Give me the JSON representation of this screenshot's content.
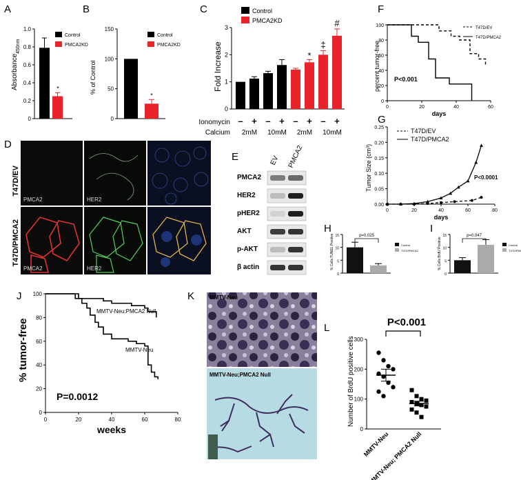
{
  "panel_labels": {
    "A": "A",
    "B": "B",
    "C": "C",
    "D": "D",
    "E": "E",
    "F": "F",
    "G": "G",
    "H": "H",
    "I": "I",
    "J": "J",
    "K": "K",
    "L": "L"
  },
  "chart_data": [
    {
      "panel": "A",
      "type": "bar",
      "ylabel": "Absorbance",
      "ylabel_sub": "450nm",
      "ylim": [
        0,
        1.0
      ],
      "yticks": [
        "0",
        "0.2",
        "0.4",
        "0.6",
        "0.8",
        "1.0"
      ],
      "legend": [
        "Control",
        "PMCA2KD"
      ],
      "series": [
        {
          "name": "Control",
          "value": 0.79,
          "error": 0.11,
          "color": "#000000"
        },
        {
          "name": "PMCA2KD",
          "value": 0.25,
          "error": 0.04,
          "color": "#e8232a"
        }
      ],
      "annotations": [
        "*"
      ]
    },
    {
      "panel": "B",
      "type": "bar",
      "ylabel": "% of Control",
      "ylim": [
        0,
        150
      ],
      "yticks": [
        "0",
        "50",
        "100",
        "150"
      ],
      "legend": [
        "Control",
        "PMCA2KD"
      ],
      "series": [
        {
          "name": "Control",
          "value": 100,
          "error": 0,
          "color": "#000000"
        },
        {
          "name": "PMCA2KD",
          "value": 25,
          "error": 7,
          "color": "#e8232a"
        }
      ],
      "annotations": [
        "*"
      ]
    },
    {
      "panel": "C",
      "type": "bar",
      "ylabel": "Fold  Increase",
      "ylim": [
        0,
        3
      ],
      "yticks": [
        "0",
        "1",
        "2",
        "3"
      ],
      "legend": [
        "Control",
        "PMCA2KD"
      ],
      "bars": [
        {
          "group": "Control",
          "value": 1.0,
          "error": 0.0
        },
        {
          "group": "Control",
          "value": 1.12,
          "error": 0.07
        },
        {
          "group": "Control",
          "value": 1.32,
          "error": 0.07
        },
        {
          "group": "Control",
          "value": 1.62,
          "error": 0.2
        },
        {
          "group": "PMCA2KD",
          "value": 1.45,
          "error": 0.05
        },
        {
          "group": "PMCA2KD",
          "value": 1.72,
          "error": 0.1
        },
        {
          "group": "PMCA2KD",
          "value": 2.0,
          "error": 0.15
        },
        {
          "group": "PMCA2KD",
          "value": 2.7,
          "error": 0.25
        }
      ],
      "colors": {
        "Control": "#000000",
        "PMCA2KD": "#e8232a"
      },
      "ionomycin_row": [
        "–",
        "+",
        "–",
        "+",
        "–",
        "+",
        "–",
        "+"
      ],
      "ionomycin_label": "Ionomycin",
      "calcium_label": "Calcium",
      "calcium_values": [
        "2mM",
        "10mM",
        "2mM",
        "10mM"
      ],
      "annotations": [
        "*",
        "‡",
        "#"
      ]
    },
    {
      "panel": "F",
      "type": "line",
      "ylabel": "percent tumor-free",
      "xlabel": "days",
      "ylim": [
        0,
        100
      ],
      "xlim": [
        0,
        60
      ],
      "yticks": [
        "0",
        "20",
        "40",
        "60",
        "80",
        "100"
      ],
      "xticks": [
        "0",
        "20",
        "40",
        "60"
      ],
      "series": [
        {
          "name": "T47D/EV",
          "style": "dashed",
          "x": [
            0,
            25,
            30,
            37,
            42,
            48,
            53,
            57
          ],
          "y": [
            100,
            100,
            92,
            85,
            80,
            62,
            55,
            45
          ]
        },
        {
          "name": "T47D/PMCA2",
          "style": "solid",
          "x": [
            0,
            14,
            18,
            24,
            28,
            36,
            49
          ],
          "y": [
            100,
            85,
            77,
            55,
            30,
            22,
            0
          ]
        }
      ],
      "annotation": "P<0.001"
    },
    {
      "panel": "G",
      "type": "line",
      "ylabel": "Tumor Size (cm³)",
      "xlabel": "days",
      "ylim": [
        0,
        0.25
      ],
      "xlim": [
        0,
        80
      ],
      "yticks": [
        "0.00",
        "0.05",
        "0.10",
        "0.15",
        "0.20",
        "0.25"
      ],
      "xticks": [
        "0",
        "20",
        "40",
        "60",
        "80"
      ],
      "series": [
        {
          "name": "T47D/EV",
          "style": "dashed",
          "marker": "circle",
          "x": [
            0,
            10,
            20,
            30,
            40,
            50,
            63,
            70
          ],
          "y": [
            0,
            0,
            0,
            0.002,
            0.005,
            0.008,
            0.012,
            0.022
          ]
        },
        {
          "name": "T47D/PMCA2",
          "style": "solid",
          "marker": "triangle",
          "x": [
            0,
            10,
            20,
            30,
            40,
            47,
            53,
            60,
            66,
            70
          ],
          "y": [
            0,
            0,
            0.002,
            0.008,
            0.02,
            0.035,
            0.055,
            0.075,
            0.135,
            0.19
          ]
        }
      ],
      "annotation": "P<0.0001"
    },
    {
      "panel": "H",
      "type": "bar",
      "ylabel": "% Cells TUNEL Positive",
      "legend": [
        "Control",
        "T47D/PMCA2"
      ],
      "series": [
        {
          "name": "Control",
          "value": 10,
          "error": 2
        },
        {
          "name": "T47D/PMCA2",
          "value": 3,
          "error": 0.7
        }
      ],
      "ylim": [
        0,
        15
      ],
      "yticks": [
        "0",
        "5",
        "10",
        "15"
      ],
      "annotation": "p=0.025"
    },
    {
      "panel": "I",
      "type": "bar",
      "ylabel": "% Cells BrdU Positive",
      "legend": [
        "Control",
        "T47D/PMCA2"
      ],
      "series": [
        {
          "name": "Control",
          "value": 5,
          "error": 1
        },
        {
          "name": "T47D/PMCA2",
          "value": 11,
          "error": 2
        }
      ],
      "ylim": [
        0,
        15
      ],
      "yticks": [
        "0",
        "5",
        "10",
        "15"
      ],
      "annotation": "p=0.047"
    },
    {
      "panel": "J",
      "type": "line",
      "ylabel": "% tumor-free",
      "xlabel": "weeks",
      "ylim": [
        0,
        100
      ],
      "xlim": [
        0,
        80
      ],
      "yticks": [
        "0",
        "20",
        "40",
        "60",
        "80",
        "100"
      ],
      "xticks": [
        "0",
        "20",
        "40",
        "60",
        "80"
      ],
      "series": [
        {
          "name": "MMTV-Neu:PMCA2 Null",
          "x": [
            0,
            10,
            20,
            35,
            40,
            52,
            60,
            62,
            67
          ],
          "y": [
            100,
            100,
            96,
            94,
            92,
            90,
            88,
            85,
            80
          ]
        },
        {
          "name": "MMTV-Neu",
          "x": [
            0,
            10,
            18,
            22,
            25,
            27,
            30,
            32,
            35,
            40,
            45,
            50,
            55,
            60,
            62,
            64,
            66,
            68
          ],
          "y": [
            100,
            100,
            96,
            92,
            88,
            82,
            76,
            72,
            66,
            62,
            62,
            60,
            58,
            56,
            40,
            34,
            30,
            28
          ]
        }
      ],
      "annotation": "P=0.0012"
    },
    {
      "panel": "L",
      "type": "scatter",
      "title": "P<0.001",
      "ylabel": "Number of BrdU positive cells",
      "ylim": [
        0,
        300
      ],
      "yticks": [
        "0",
        "100",
        "200",
        "300"
      ],
      "categories": [
        "MMTV-Neu",
        "MMTV-Neu; PMCA2 Null"
      ],
      "series": [
        {
          "name": "MMTV-Neu",
          "marker": "circle",
          "mean": 180,
          "sem": 20,
          "values": [
            255,
            230,
            210,
            200,
            185,
            175,
            155,
            140,
            125,
            110
          ]
        },
        {
          "name": "MMTV-Neu; PMCA2 Null",
          "marker": "square",
          "mean": 85,
          "sem": 8,
          "values": [
            130,
            110,
            100,
            95,
            90,
            85,
            80,
            75,
            65,
            55,
            40
          ]
        }
      ]
    }
  ],
  "micrographs": {
    "D": {
      "row_labels": [
        "T47D/EV",
        "T47D/PMCA2"
      ],
      "captions": [
        "PMCA2",
        "HER2",
        "PMCA2",
        "HER2"
      ]
    },
    "K": {
      "captions": [
        "MMTV-Neu",
        "MMTV-Neu;PMCA2 Null"
      ]
    }
  },
  "western_blot": {
    "E": {
      "lanes": [
        "EV",
        "PMCA2"
      ],
      "rows": [
        "PMCA2",
        "HER2",
        "pHER2",
        "AKT",
        "p-AKT",
        "β actin"
      ]
    }
  }
}
